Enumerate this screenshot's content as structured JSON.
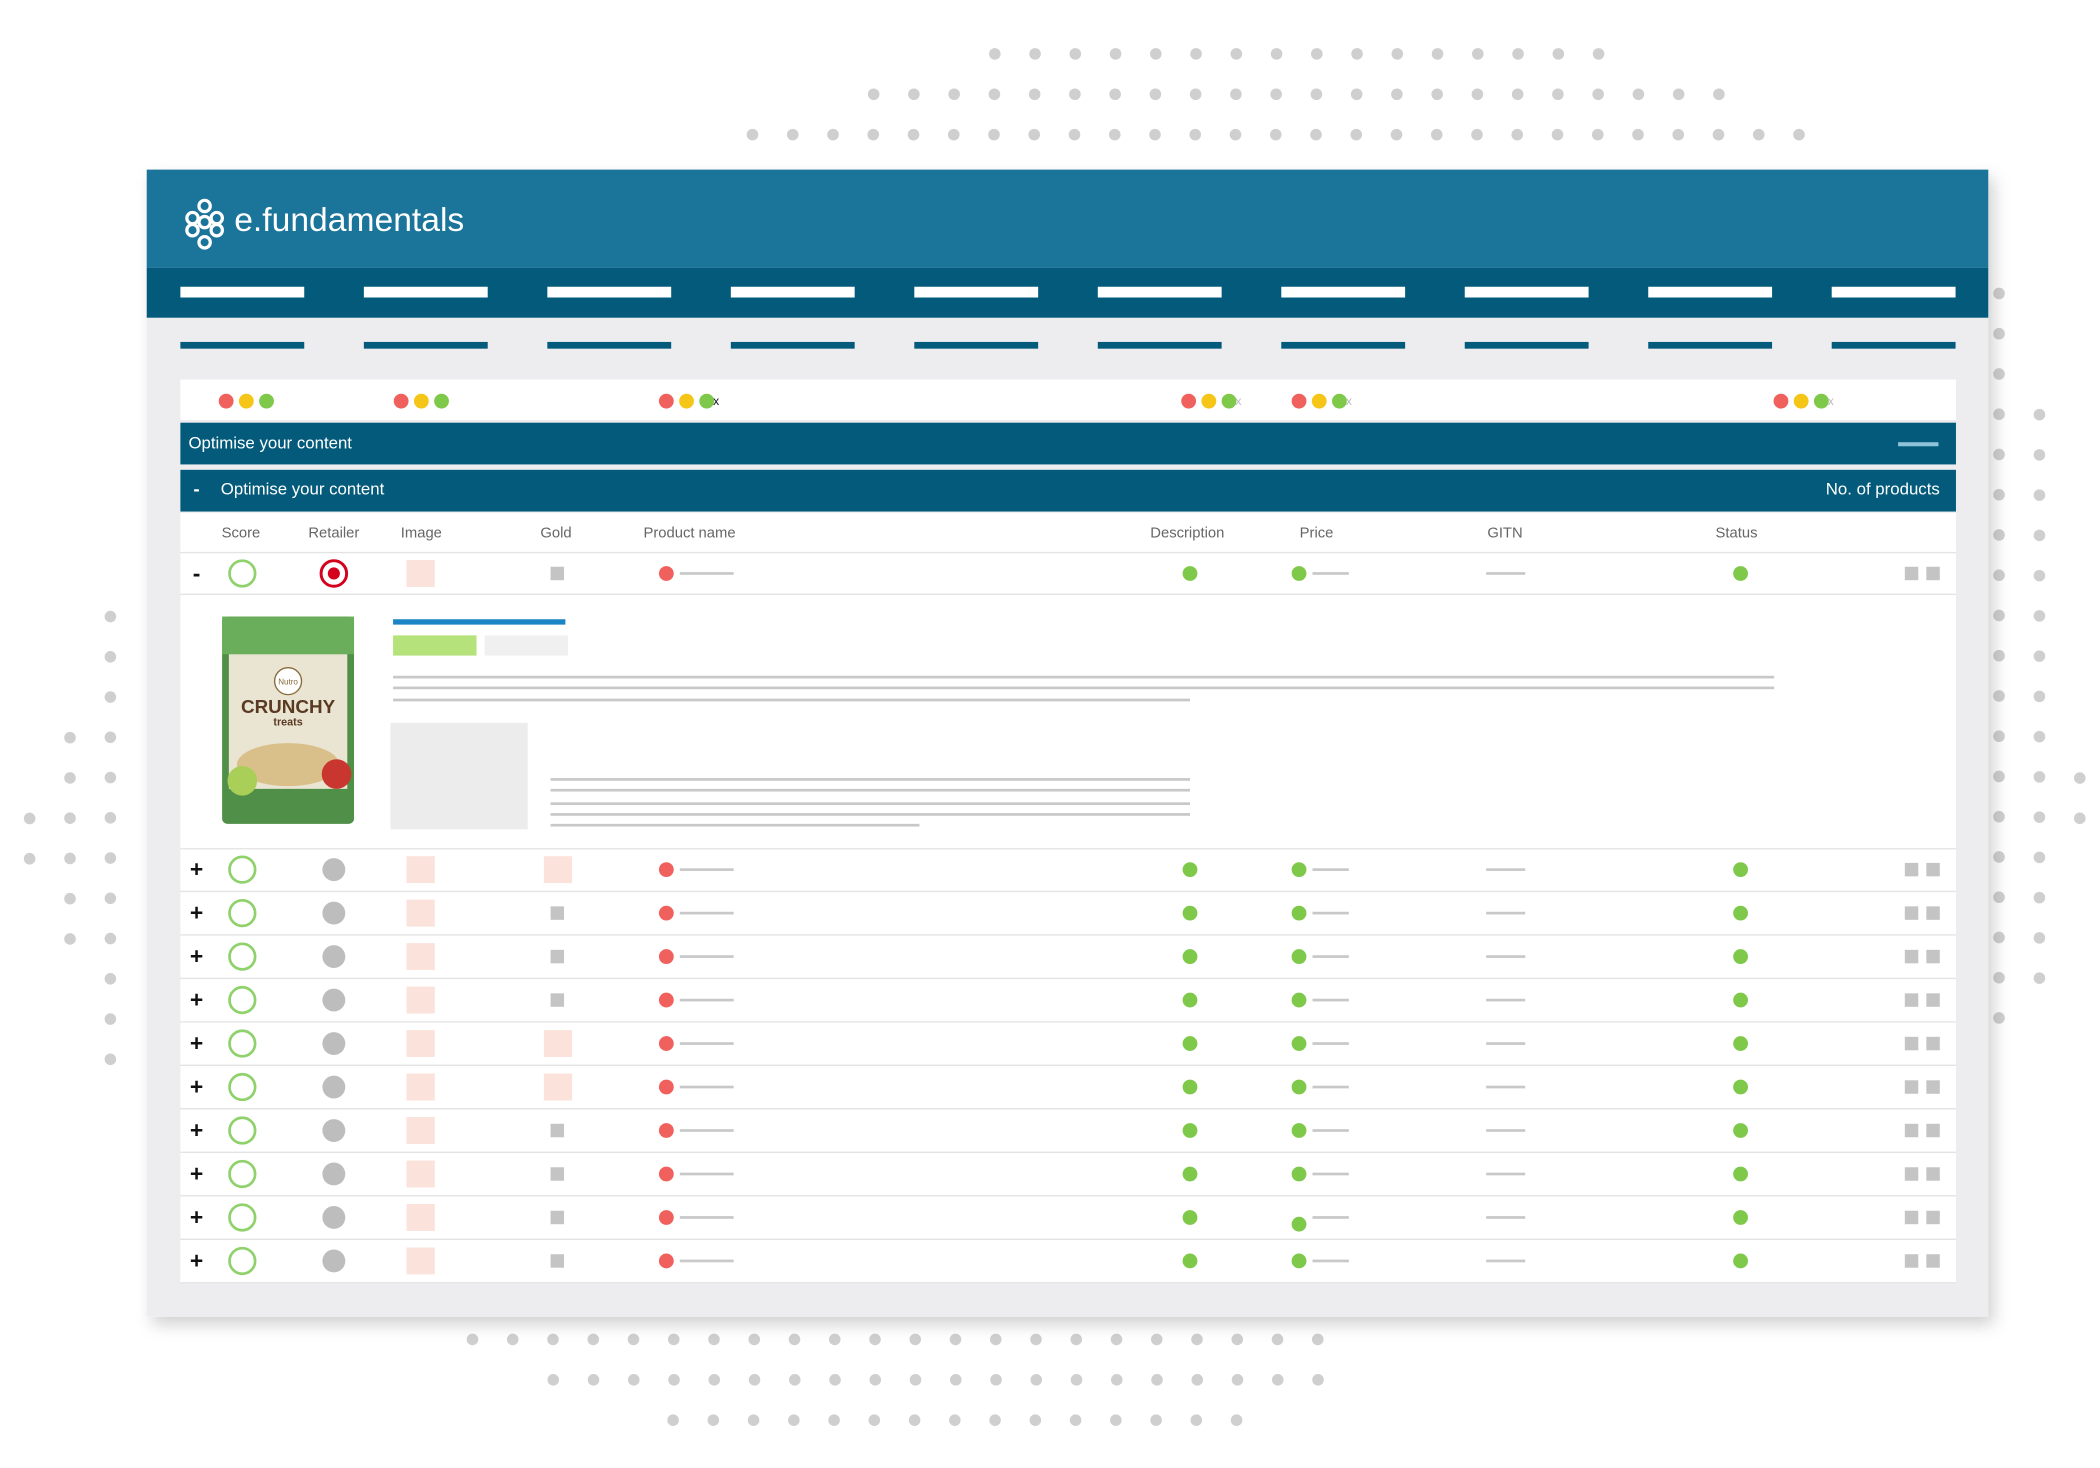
{
  "header": {
    "logo": "e.fundamentals"
  },
  "status_strip": {
    "marks": [
      "x",
      "x",
      "x",
      "x"
    ]
  },
  "section": {
    "title": "Optimise your content"
  },
  "table": {
    "collapse": "-",
    "title": "Optimise your content",
    "count_label": "No. of products",
    "columns": [
      "Score",
      "Retailer",
      "Image",
      "Gold",
      "Product name",
      "Description",
      "Price",
      "GITN",
      "Status"
    ],
    "rows": [
      {
        "toggle": "-"
      },
      {
        "toggle": "+"
      },
      {
        "toggle": "+"
      },
      {
        "toggle": "+"
      },
      {
        "toggle": "+"
      },
      {
        "toggle": "+"
      },
      {
        "toggle": "+"
      },
      {
        "toggle": "+"
      },
      {
        "toggle": "+"
      },
      {
        "toggle": "+"
      },
      {
        "toggle": "+"
      }
    ]
  },
  "product_image": {
    "brand": "Nutro",
    "name": "CRUNCHY",
    "sub": "treats"
  }
}
